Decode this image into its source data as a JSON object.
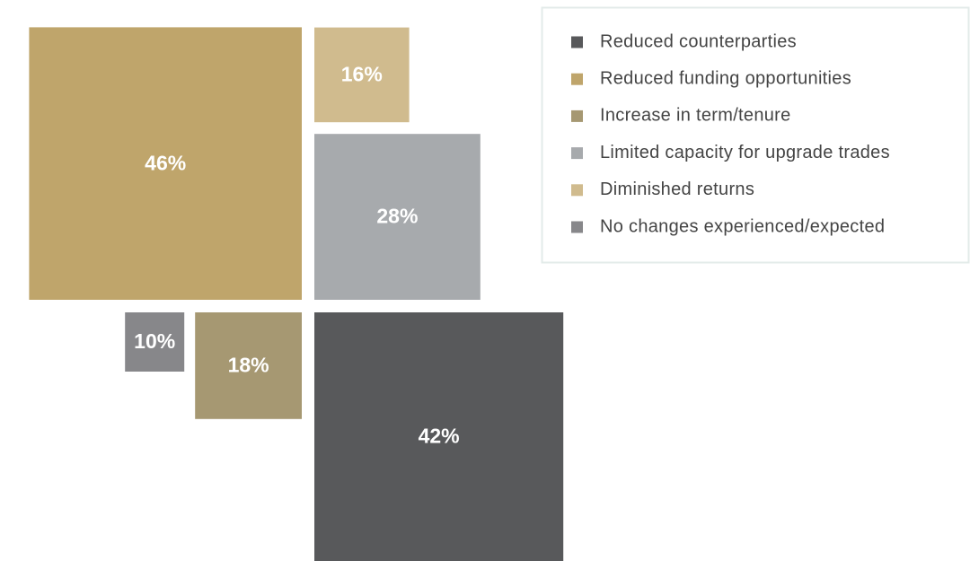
{
  "chart_data": {
    "type": "squares",
    "categories": [
      "Reduced counterparties",
      "Reduced funding opportunities",
      "Increase in term/tenure",
      "Limited capacity for upgrade trades",
      "Diminished returns",
      "No changes experienced/expected"
    ],
    "values": [
      42,
      46,
      18,
      28,
      16,
      10
    ],
    "value_labels": [
      "42%",
      "46%",
      "18%",
      "28%",
      "16%",
      "10%"
    ],
    "colors": [
      "#58595b",
      "#bfa56b",
      "#a69872",
      "#a7aaad",
      "#d0bb8e",
      "#87878a"
    ],
    "legend": "top-right"
  }
}
